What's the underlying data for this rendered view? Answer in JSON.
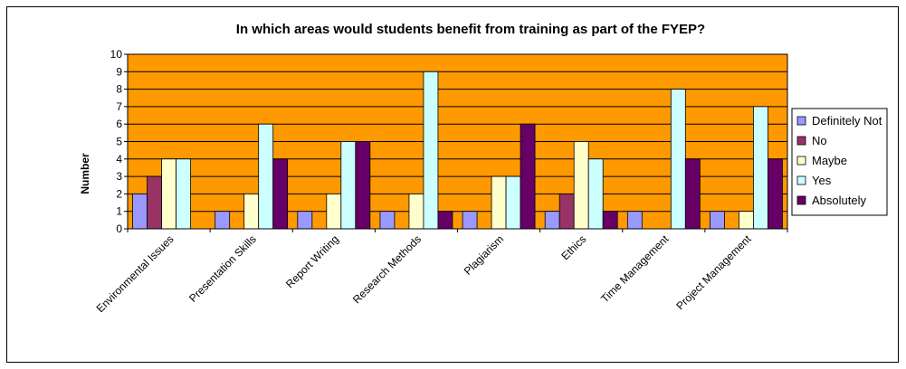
{
  "chart_data": {
    "type": "bar",
    "title": "In which areas would students benefit from training as part of the FYEP?",
    "xlabel": "",
    "ylabel": "Number",
    "ylim": [
      0,
      10
    ],
    "yticks": [
      0,
      1,
      2,
      3,
      4,
      5,
      6,
      7,
      8,
      9,
      10
    ],
    "grid": true,
    "legend_position": "right",
    "plot_background": "#FF9900",
    "categories": [
      "Environmental Issues",
      "Presentation Skills",
      "Report Writing",
      "Research Methods",
      "Plagiarism",
      "Ethics",
      "Time Management",
      "Project Management"
    ],
    "series": [
      {
        "name": "Definitely Not",
        "color": "#9999FF",
        "values": [
          2,
          1,
          1,
          1,
          1,
          1,
          1,
          1
        ]
      },
      {
        "name": "No",
        "color": "#993366",
        "values": [
          3,
          0,
          0,
          0,
          0,
          2,
          0,
          0
        ]
      },
      {
        "name": "Maybe",
        "color": "#FFFFCC",
        "values": [
          4,
          2,
          2,
          2,
          3,
          5,
          0,
          1
        ]
      },
      {
        "name": "Yes",
        "color": "#CCFFFF",
        "values": [
          4,
          6,
          5,
          9,
          3,
          4,
          8,
          7
        ]
      },
      {
        "name": "Absolutely",
        "color": "#660066",
        "values": [
          0,
          4,
          5,
          1,
          6,
          1,
          4,
          4
        ]
      }
    ]
  }
}
